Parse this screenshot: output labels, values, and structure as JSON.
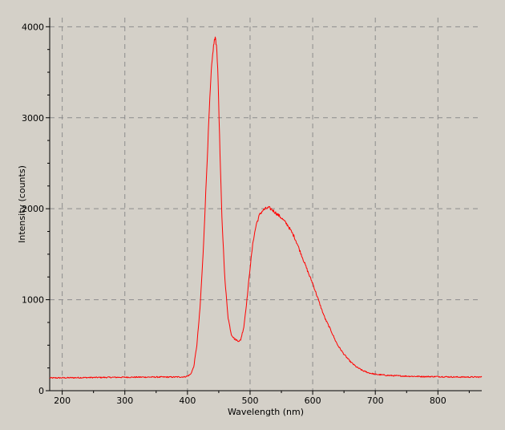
{
  "chart_data": {
    "type": "line",
    "title": "",
    "xlabel": "Wavelength (nm)",
    "ylabel": "Intensity (counts)",
    "xlim": [
      180,
      870
    ],
    "ylim": [
      0,
      4100
    ],
    "x_ticks": [
      200,
      300,
      400,
      500,
      600,
      700,
      800
    ],
    "y_ticks": [
      0,
      1000,
      2000,
      3000,
      4000
    ],
    "grid": true,
    "legend": "none",
    "colors": {
      "line": "#ff0000",
      "grid": "#8c8c8c",
      "background": "#d4d0c8",
      "axis": "#000000"
    },
    "series": [
      {
        "x": [
          180,
          250,
          300,
          350,
          380,
          395,
          400,
          405,
          410,
          415,
          420,
          425,
          430,
          435,
          438,
          441,
          443,
          445,
          447,
          449,
          452,
          455,
          460,
          465,
          470,
          475,
          480,
          483,
          485,
          490,
          495,
          500,
          505,
          510,
          515,
          520,
          525,
          530,
          535,
          540,
          545,
          550,
          555,
          560,
          565,
          570,
          575,
          580,
          585,
          590,
          595,
          600,
          605,
          610,
          615,
          620,
          625,
          630,
          635,
          640,
          650,
          660,
          670,
          680,
          690,
          700,
          720,
          740,
          760,
          780,
          800,
          830,
          870
        ],
        "y": [
          140,
          145,
          148,
          150,
          150,
          152,
          160,
          180,
          260,
          500,
          900,
          1500,
          2300,
          3100,
          3500,
          3750,
          3850,
          3870,
          3750,
          3400,
          2600,
          1900,
          1200,
          800,
          620,
          570,
          550,
          545,
          560,
          700,
          1000,
          1350,
          1650,
          1830,
          1930,
          1980,
          2000,
          2010,
          1990,
          1960,
          1930,
          1900,
          1860,
          1820,
          1760,
          1700,
          1620,
          1530,
          1440,
          1350,
          1260,
          1180,
          1080,
          980,
          880,
          790,
          720,
          650,
          570,
          500,
          400,
          320,
          260,
          220,
          195,
          180,
          168,
          162,
          158,
          155,
          155,
          150,
          150
        ]
      }
    ]
  }
}
